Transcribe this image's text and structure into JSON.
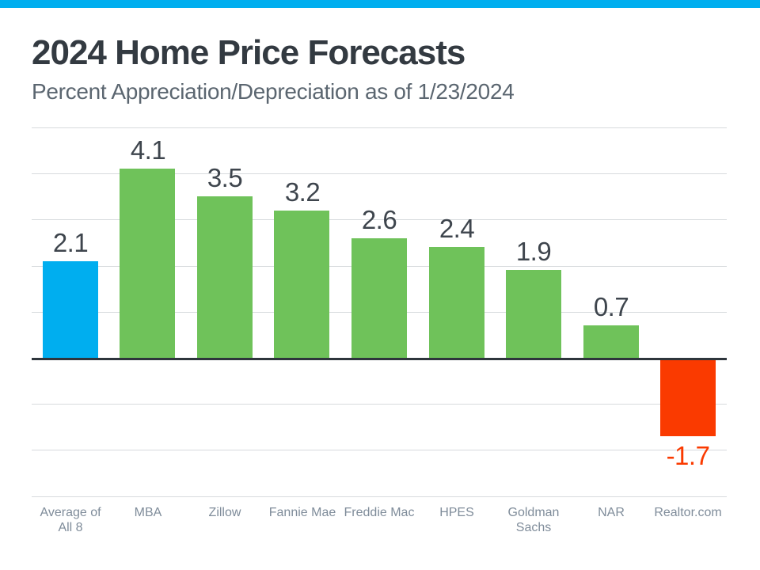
{
  "accent": {
    "top_bar_color": "#00AEEF"
  },
  "header": {
    "title": "2024 Home Price Forecasts",
    "subtitle": "Percent Appreciation/Depreciation as of 1/23/2024"
  },
  "chart_data": {
    "type": "bar",
    "title": "2024 Home Price Forecasts",
    "subtitle": "Percent Appreciation/Depreciation as of 1/23/2024",
    "categories": [
      "Average of All 8",
      "MBA",
      "Zillow",
      "Fannie Mae",
      "Freddie Mac",
      "HPES",
      "Goldman Sachs",
      "NAR",
      "Realtor.com"
    ],
    "values": [
      2.1,
      4.1,
      3.5,
      3.2,
      2.6,
      2.4,
      1.9,
      0.7,
      -1.7
    ],
    "value_labels": [
      "2.1",
      "4.1",
      "3.5",
      "3.2",
      "2.6",
      "2.4",
      "1.9",
      "0.7",
      "-1.7"
    ],
    "point_colors": [
      "#00AEEF",
      "#6FC25A",
      "#6FC25A",
      "#6FC25A",
      "#6FC25A",
      "#6FC25A",
      "#6FC25A",
      "#6FC25A",
      "#FA3A00"
    ],
    "xlabel": "",
    "ylabel": "",
    "ylim": [
      -3,
      5
    ],
    "grid_step": 1,
    "grid": "on",
    "legend": "none",
    "colors": {
      "average_bar": "#00AEEF",
      "positive_bar": "#6FC25A",
      "negative_bar": "#FA3A00",
      "value_label": "#3E454D",
      "negative_value_label": "#FA3A00",
      "category_label": "#7F8C9A",
      "gridline": "#D7DADD",
      "zero_line": "#2E353C",
      "title": "#333A41",
      "subtitle": "#5B6670"
    }
  }
}
